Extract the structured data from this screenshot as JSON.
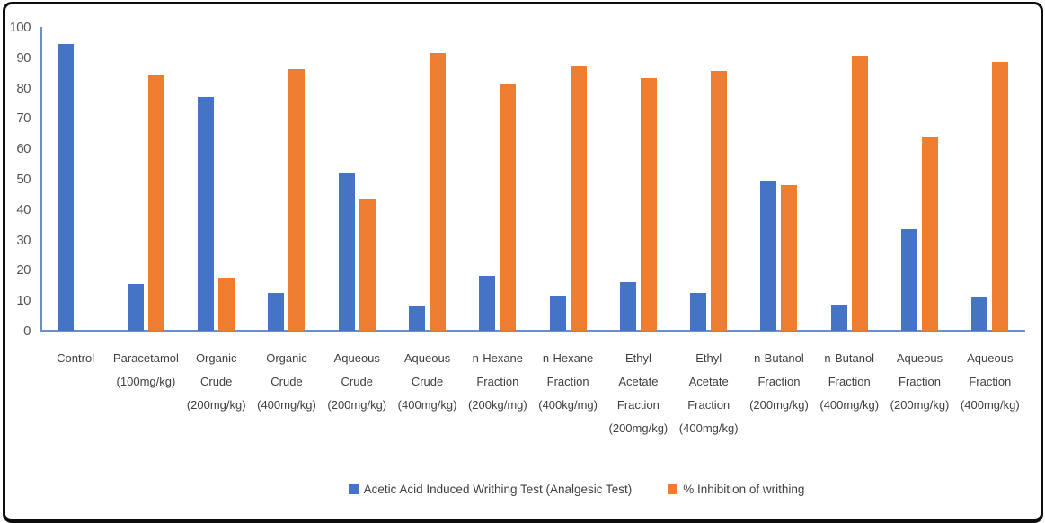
{
  "chart_data": {
    "type": "bar",
    "title": "",
    "xlabel": "",
    "ylabel": "",
    "ylim": [
      0,
      100
    ],
    "yticks": [
      "0",
      "10",
      "20",
      "30",
      "40",
      "50",
      "60",
      "70",
      "80",
      "90",
      "100"
    ],
    "grid": false,
    "legend_position": "bottom",
    "categories": [
      "Control",
      "Paracetamol (100mg/kg)",
      "Organic Crude (200mg/kg)",
      "Organic Crude (400mg/kg)",
      "Aqueous Crude (200mg/kg)",
      "Aqueous Crude (400mg/kg)",
      "n-Hexane Fraction (200kg/mg)",
      "n-Hexane Fraction (400kg/mg)",
      "Ethyl Acetate Fraction (200mg/kg)",
      "Ethyl Acetate Fraction (400mg/kg)",
      "n-Butanol Fraction (200mg/kg)",
      "n-Butanol Fraction (400mg/kg)",
      "Aqueous Fraction (200mg/kg)",
      "Aqueous Fraction (400mg/kg)"
    ],
    "series": [
      {
        "name": "Acetic Acid Induced Writhing Test (Analgesic Test)",
        "color": "#4573C6",
        "values": [
          94.5,
          15.5,
          77,
          12.5,
          52,
          8,
          18,
          11.5,
          16,
          12.5,
          49.5,
          8.5,
          33.5,
          11
        ]
      },
      {
        "name": "% Inhibition of writhing",
        "color": "#ED7D31",
        "values": [
          0,
          84,
          17.5,
          86,
          43.5,
          91.5,
          81,
          87,
          83,
          85.5,
          48,
          90.5,
          64,
          88.5
        ]
      }
    ],
    "colors": {
      "axis_line": "#6b8ecd",
      "frame_border": "#0d0d0d",
      "tick_text": "#555555",
      "label_text": "#3f3f3f"
    }
  }
}
